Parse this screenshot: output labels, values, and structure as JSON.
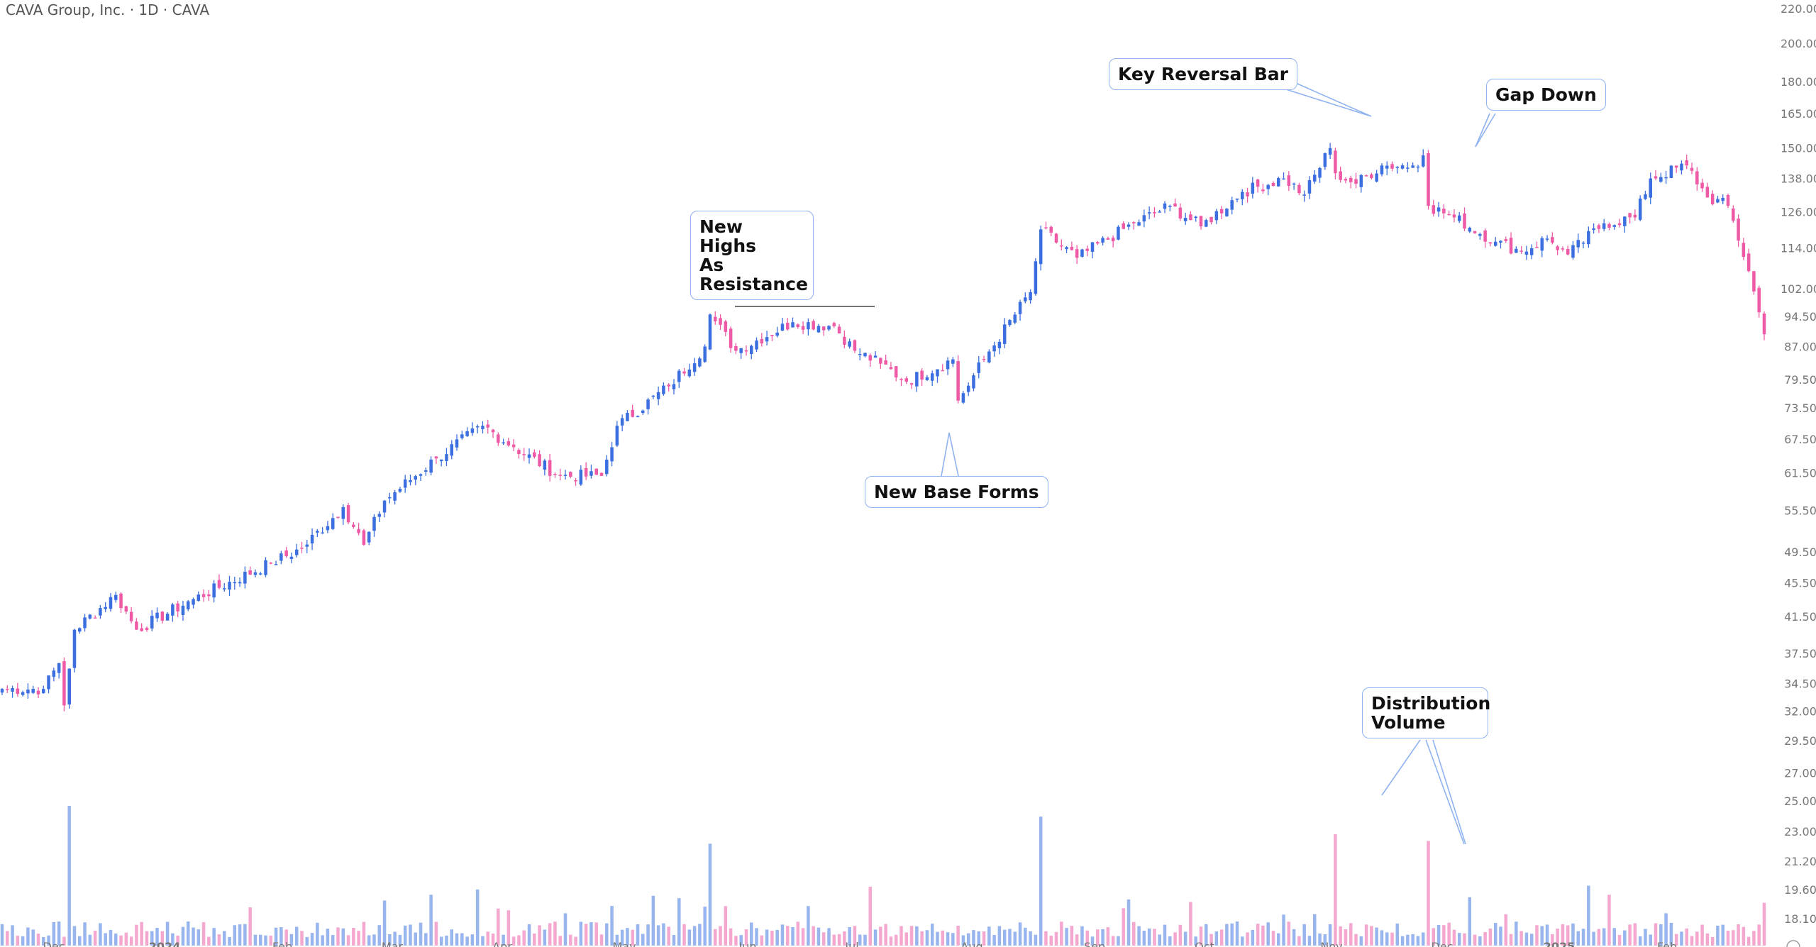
{
  "header": {
    "title": "CAVA Group, Inc. · 1D · CAVA"
  },
  "colors": {
    "up": "#3b6fe0",
    "down": "#ee5aa6",
    "up_volume": "#98b5ee",
    "down_volume": "#f5a8cf",
    "axis_text": "#777777",
    "callout_border": "#8fb2f0"
  },
  "chart_data": {
    "type": "candlestick",
    "scale": "log",
    "yaxis_ticks": [
      220.0,
      200.0,
      180.0,
      165.0,
      150.0,
      138.0,
      126.0,
      114.0,
      102.0,
      94.5,
      87.0,
      79.5,
      73.5,
      67.5,
      61.5,
      55.5,
      49.5,
      45.5,
      41.5,
      37.5,
      34.5,
      32.0,
      29.5,
      27.0,
      25.0,
      23.0,
      21.2,
      19.6,
      18.1
    ],
    "ylim": [
      18.1,
      220.0
    ],
    "xaxis_labels": [
      "Dec",
      "2024",
      "Feb",
      "Mar",
      "Apr",
      "May",
      "Jun",
      "Jul",
      "Aug",
      "Sep",
      "Oct",
      "Nov",
      "Dec",
      "2025",
      "Feb"
    ],
    "price_anchors": [
      [
        "2023-11-20",
        34
      ],
      [
        "2023-11-30",
        34
      ],
      [
        "2023-12-05",
        36.5
      ],
      [
        "2023-12-06",
        32.5
      ],
      [
        "2023-12-08",
        40
      ],
      [
        "2023-12-20",
        44
      ],
      [
        "2023-12-26",
        40
      ],
      [
        "2024-01-10",
        43.5
      ],
      [
        "2024-01-31",
        48
      ],
      [
        "2024-02-08",
        50
      ],
      [
        "2024-02-20",
        56
      ],
      [
        "2024-02-26",
        50.5
      ],
      [
        "2024-03-01",
        57
      ],
      [
        "2024-03-15",
        64
      ],
      [
        "2024-03-28",
        70
      ],
      [
        "2024-04-05",
        66
      ],
      [
        "2024-04-18",
        61
      ],
      [
        "2024-04-30",
        61
      ],
      [
        "2024-05-03",
        70
      ],
      [
        "2024-05-17",
        78
      ],
      [
        "2024-05-28",
        87
      ],
      [
        "2024-05-29",
        95
      ],
      [
        "2024-06-05",
        86
      ],
      [
        "2024-06-20",
        93
      ],
      [
        "2024-07-02",
        92
      ],
      [
        "2024-07-08",
        86
      ],
      [
        "2024-07-15",
        83
      ],
      [
        "2024-07-22",
        79
      ],
      [
        "2024-08-02",
        84
      ],
      [
        "2024-08-05",
        75
      ],
      [
        "2024-08-12",
        84
      ],
      [
        "2024-08-23",
        101
      ],
      [
        "2024-08-27",
        120
      ],
      [
        "2024-09-05",
        111
      ],
      [
        "2024-09-20",
        122
      ],
      [
        "2024-10-01",
        128
      ],
      [
        "2024-10-09",
        121
      ],
      [
        "2024-10-21",
        133
      ],
      [
        "2024-10-31",
        138
      ],
      [
        "2024-11-06",
        132
      ],
      [
        "2024-11-13",
        150
      ],
      [
        "2024-11-14",
        140
      ],
      [
        "2024-11-20",
        136
      ],
      [
        "2024-11-27",
        143
      ],
      [
        "2024-12-05",
        143
      ],
      [
        "2024-12-09",
        147
      ],
      [
        "2024-12-10",
        128
      ],
      [
        "2024-12-17",
        124
      ],
      [
        "2024-12-27",
        116
      ],
      [
        "2025-01-03",
        113
      ],
      [
        "2025-01-10",
        117
      ],
      [
        "2025-01-16",
        112
      ],
      [
        "2025-01-27",
        122
      ],
      [
        "2025-02-04",
        124
      ],
      [
        "2025-02-07",
        138
      ],
      [
        "2025-02-18",
        143
      ],
      [
        "2025-02-24",
        131
      ],
      [
        "2025-02-28",
        128
      ],
      [
        "2025-03-06",
        107
      ],
      [
        "2025-03-11",
        90
      ]
    ],
    "volume_scale": {
      "base_level": "low",
      "spike_dates": [
        "2023-12-07",
        "2024-05-29",
        "2024-08-27",
        "2024-11-14",
        "2024-12-10"
      ]
    }
  },
  "annotations": {
    "resistance": "New Highs\nAs Resistance",
    "base": "New Base Forms",
    "reversal": "Key Reversal Bar",
    "gap": "Gap Down",
    "distribution": "Distribution\nVolume"
  }
}
